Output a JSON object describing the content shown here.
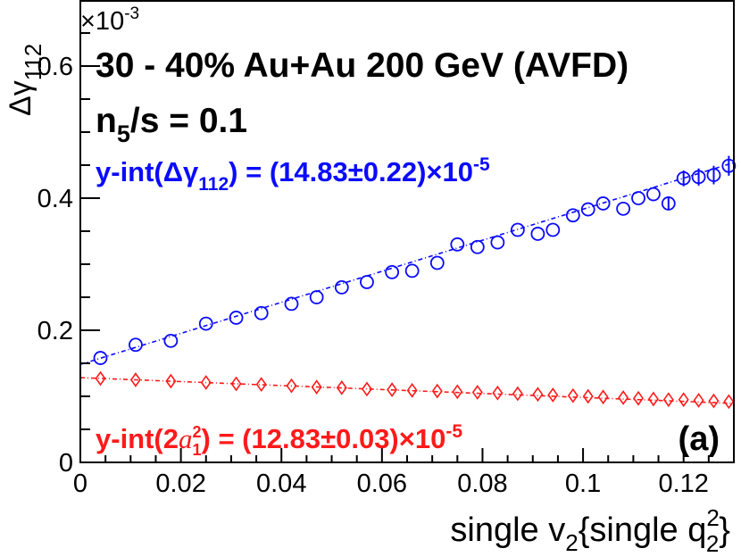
{
  "chart_data": {
    "type": "scatter",
    "multiplier_label": "×10",
    "multiplier_exp": "-3",
    "ylabel": {
      "main": "Δγ",
      "sub": "112"
    },
    "xlabel": {
      "main": "single v",
      "sub1": "2",
      "mid": "{single q",
      "sup": "2",
      "sub2": "2",
      "end": "}"
    },
    "title_line1": "30 - 40% Au+Au 200 GeV (AVFD)",
    "title_line2": {
      "pre": "n",
      "sub": "5",
      "post": "/s = 0.1"
    },
    "blue_annotation": {
      "pre": "y-int(Δγ",
      "sub": "112",
      "post": ") = (14.83±0.22)×10",
      "sup": "-5"
    },
    "red_annotation": {
      "pre": "y-int(2",
      "italic": "a",
      "sup1": "2",
      "sub1": "1",
      "post": ") = (12.83±0.03)×10",
      "sup": "-5"
    },
    "panel_label": "(a)",
    "xlim": [
      0,
      0.13
    ],
    "ylim": [
      0,
      0.7
    ],
    "xticks": [
      "0",
      "0.02",
      "0.04",
      "0.06",
      "0.08",
      "0.1",
      "0.12"
    ],
    "yticks": [
      "0",
      "0.2",
      "0.4",
      "0.6"
    ],
    "colors": {
      "blue": "#0a0aff",
      "red": "#ff1a1a",
      "axis": "#000000"
    },
    "series": [
      {
        "marker": "open-circle",
        "color": "#0a0aff",
        "fit": {
          "intercept": 0.1483,
          "slope": 2.35
        },
        "x": [
          0.004,
          0.011,
          0.018,
          0.025,
          0.031,
          0.036,
          0.042,
          0.047,
          0.052,
          0.057,
          0.062,
          0.066,
          0.071,
          0.075,
          0.079,
          0.083,
          0.087,
          0.091,
          0.094,
          0.098,
          0.101,
          0.104,
          0.108,
          0.111,
          0.114,
          0.117,
          0.12,
          0.123,
          0.126,
          0.129
        ],
        "y": [
          0.158,
          0.178,
          0.184,
          0.21,
          0.219,
          0.226,
          0.24,
          0.25,
          0.265,
          0.273,
          0.288,
          0.29,
          0.302,
          0.33,
          0.326,
          0.333,
          0.352,
          0.346,
          0.352,
          0.374,
          0.383,
          0.392,
          0.384,
          0.4,
          0.406,
          0.392,
          0.43,
          0.432,
          0.435,
          0.449
        ],
        "err": [
          0.003,
          0.003,
          0.003,
          0.003,
          0.003,
          0.003,
          0.003,
          0.003,
          0.003,
          0.003,
          0.003,
          0.004,
          0.004,
          0.004,
          0.004,
          0.004,
          0.005,
          0.005,
          0.005,
          0.006,
          0.006,
          0.007,
          0.008,
          0.008,
          0.009,
          0.01,
          0.012,
          0.013,
          0.014,
          0.015
        ]
      },
      {
        "marker": "open-diamond",
        "color": "#ff1a1a",
        "fit": {
          "intercept": 0.1283,
          "slope": -0.3
        },
        "x": [
          0.004,
          0.011,
          0.018,
          0.025,
          0.031,
          0.036,
          0.042,
          0.047,
          0.052,
          0.057,
          0.062,
          0.066,
          0.071,
          0.075,
          0.079,
          0.083,
          0.087,
          0.091,
          0.094,
          0.098,
          0.101,
          0.104,
          0.108,
          0.111,
          0.114,
          0.117,
          0.12,
          0.123,
          0.126,
          0.129
        ],
        "y": [
          0.127,
          0.125,
          0.123,
          0.121,
          0.119,
          0.118,
          0.116,
          0.114,
          0.113,
          0.111,
          0.11,
          0.109,
          0.108,
          0.107,
          0.106,
          0.105,
          0.104,
          0.103,
          0.102,
          0.101,
          0.1,
          0.099,
          0.098,
          0.097,
          0.096,
          0.095,
          0.095,
          0.094,
          0.093,
          0.092
        ],
        "err": [
          0.001,
          0.001,
          0.001,
          0.001,
          0.001,
          0.001,
          0.001,
          0.001,
          0.001,
          0.001,
          0.001,
          0.001,
          0.001,
          0.001,
          0.001,
          0.001,
          0.001,
          0.001,
          0.001,
          0.001,
          0.001,
          0.001,
          0.001,
          0.001,
          0.001,
          0.001,
          0.001,
          0.001,
          0.001,
          0.001
        ]
      }
    ]
  }
}
